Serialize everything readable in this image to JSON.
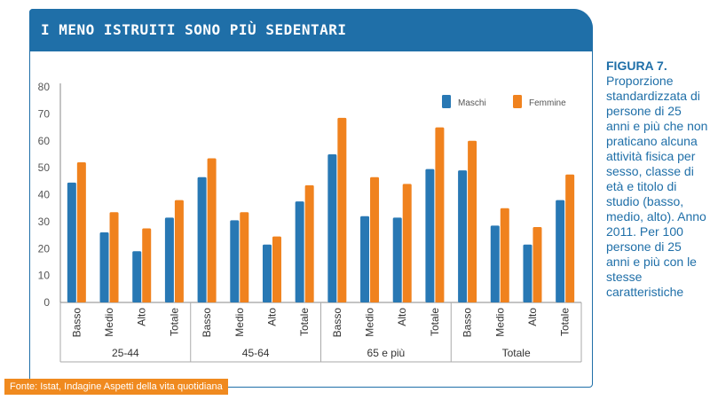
{
  "header": {
    "title": "I MENO ISTRUITI SONO PIÙ SEDENTARI"
  },
  "caption": {
    "heading": "FIGURA 7.",
    "text": "Proporzione standardizzata di persone di 25 anni e più che non praticano alcuna attività fisica per sesso, classe di età e titolo di studio (basso, medio, alto). Anno 2011. Per 100 persone di 25 anni e più con le stesse caratteristiche"
  },
  "source": "Fonte: Istat, Indagine Aspetti della vita quotidiana",
  "colors": {
    "maschi": "#2878b4",
    "femmine": "#f0821e",
    "frame": "#1f6fa8"
  },
  "chart_data": {
    "type": "bar",
    "ylim": [
      0,
      80
    ],
    "yticks": [
      0,
      10,
      20,
      30,
      40,
      50,
      60,
      70,
      80
    ],
    "legend_position": "top-right",
    "groups": [
      {
        "label": "25-44",
        "categories": [
          "Basso",
          "Medio",
          "Alto",
          "Totale"
        ]
      },
      {
        "label": "45-64",
        "categories": [
          "Basso",
          "Medio",
          "Alto",
          "Totale"
        ]
      },
      {
        "label": "65 e più",
        "categories": [
          "Basso",
          "Medio",
          "Alto",
          "Totale"
        ]
      },
      {
        "label": "Totale",
        "categories": [
          "Basso",
          "Medio",
          "Alto",
          "Totale"
        ]
      }
    ],
    "series": [
      {
        "name": "Maschi",
        "values": [
          44.5,
          26,
          19,
          31.5,
          46.5,
          30.5,
          21.5,
          37.5,
          55,
          32,
          31.5,
          49.5,
          49,
          28.5,
          21.5,
          38
        ]
      },
      {
        "name": "Femmine",
        "values": [
          52,
          33.5,
          27.5,
          38,
          53.5,
          33.5,
          24.5,
          43.5,
          68.5,
          46.5,
          44,
          65,
          60,
          35,
          28,
          47.5
        ]
      }
    ]
  }
}
